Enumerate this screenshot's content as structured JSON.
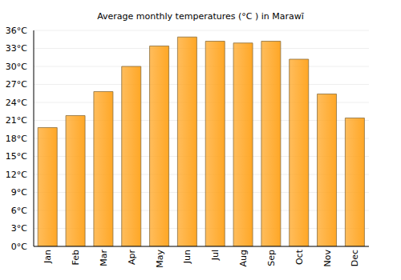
{
  "chart_data": {
    "type": "bar",
    "title": "Average monthly temperatures (°C ) in Marawī",
    "categories": [
      "Jan",
      "Feb",
      "Mar",
      "Apr",
      "May",
      "Jun",
      "Jul",
      "Aug",
      "Sep",
      "Oct",
      "Nov",
      "Dec"
    ],
    "values": [
      19.8,
      21.8,
      25.8,
      30,
      33.4,
      34.9,
      34.2,
      33.9,
      34.2,
      31.2,
      25.4,
      21.4
    ],
    "color": "#ffa726",
    "ylim": [
      0,
      36
    ],
    "yticks": [
      {
        "value": 0,
        "label": "0°C"
      },
      {
        "value": 3,
        "label": "3°C"
      },
      {
        "value": 6,
        "label": "6°C"
      },
      {
        "value": 9,
        "label": "9°C"
      },
      {
        "value": 12,
        "label": "12°C"
      },
      {
        "value": 15,
        "label": "15°C"
      },
      {
        "value": 18,
        "label": "18°C"
      },
      {
        "value": 21,
        "label": "21°C"
      },
      {
        "value": 24,
        "label": "24°C"
      },
      {
        "value": 27,
        "label": "27°C"
      },
      {
        "value": 30,
        "label": "30°C"
      },
      {
        "value": 33,
        "label": "33°C"
      },
      {
        "value": 36,
        "label": "36°C"
      }
    ],
    "grid": true
  }
}
